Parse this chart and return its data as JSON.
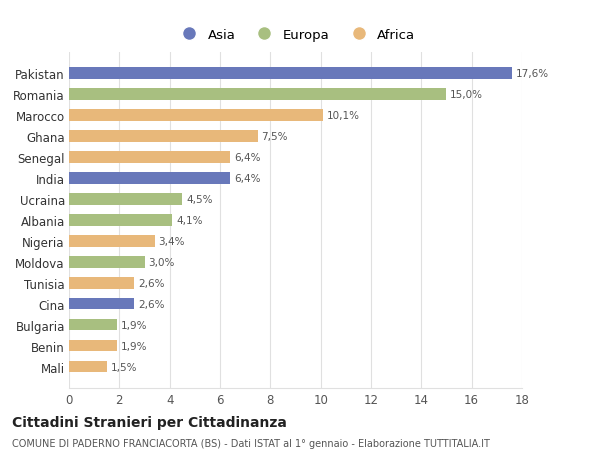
{
  "categories": [
    "Mali",
    "Benin",
    "Bulgaria",
    "Cina",
    "Tunisia",
    "Moldova",
    "Nigeria",
    "Albania",
    "Ucraina",
    "India",
    "Senegal",
    "Ghana",
    "Marocco",
    "Romania",
    "Pakistan"
  ],
  "values": [
    1.5,
    1.9,
    1.9,
    2.6,
    2.6,
    3.0,
    3.4,
    4.1,
    4.5,
    6.4,
    6.4,
    7.5,
    10.1,
    15.0,
    17.6
  ],
  "continents": [
    "Africa",
    "Africa",
    "Europa",
    "Asia",
    "Africa",
    "Europa",
    "Africa",
    "Europa",
    "Europa",
    "Asia",
    "Africa",
    "Africa",
    "Africa",
    "Europa",
    "Asia"
  ],
  "labels": [
    "1,5%",
    "1,9%",
    "1,9%",
    "2,6%",
    "2,6%",
    "3,0%",
    "3,4%",
    "4,1%",
    "4,5%",
    "6,4%",
    "6,4%",
    "7,5%",
    "10,1%",
    "15,0%",
    "17,6%"
  ],
  "continent_colors": {
    "Asia": "#6878ba",
    "Europa": "#a8bf80",
    "Africa": "#e8b87a"
  },
  "title": "Cittadini Stranieri per Cittadinanza",
  "subtitle": "COMUNE DI PADERNO FRANCIACORTA (BS) - Dati ISTAT al 1° gennaio - Elaborazione TUTTITALIA.IT",
  "xlim": [
    0,
    18
  ],
  "xticks": [
    0,
    2,
    4,
    6,
    8,
    10,
    12,
    14,
    16,
    18
  ],
  "background_color": "#ffffff",
  "grid_color": "#e0e0e0",
  "bar_height": 0.55,
  "legend_labels": [
    "Asia",
    "Europa",
    "Africa"
  ],
  "legend_colors": [
    "#6878ba",
    "#a8bf80",
    "#e8b87a"
  ]
}
